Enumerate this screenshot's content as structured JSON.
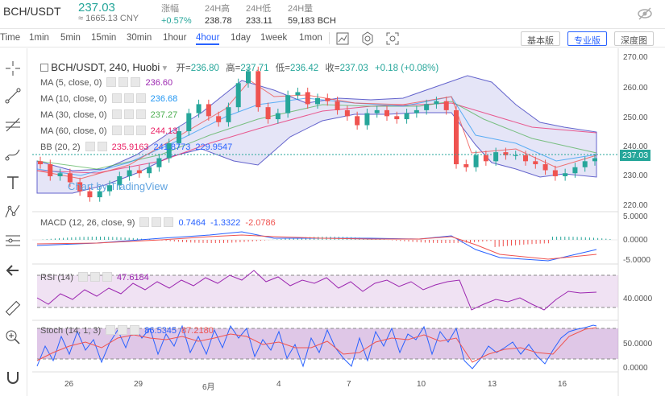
{
  "ticker": {
    "symbol": "BCH/USDT",
    "price": "237.03",
    "cny": "≈ 1665.13 CNY",
    "stats": [
      {
        "label": "涨幅",
        "value": "+0.57%",
        "up": true
      },
      {
        "label": "24H高",
        "value": "238.78",
        "up": false
      },
      {
        "label": "24H低",
        "value": "233.11",
        "up": false
      },
      {
        "label": "24H量",
        "value": "59,183 BCH",
        "up": false
      }
    ]
  },
  "toolbar": {
    "intervals": [
      "Time",
      "1min",
      "5min",
      "15min",
      "30min",
      "1hour",
      "4hour",
      "1day",
      "1week",
      "1mon"
    ],
    "active_interval": "4hour",
    "views": [
      {
        "label": "基本版",
        "active": false
      },
      {
        "label": "专业版",
        "active": true
      },
      {
        "label": "深度图",
        "active": false
      }
    ]
  },
  "legend": {
    "symbol_line": "BCH/USDT, 240, Huobi",
    "open_label": "开=",
    "open": "236.80",
    "high_label": "高=",
    "high": "237.71",
    "low_label": "低=",
    "low": "236.42",
    "close_label": "收=",
    "close": "237.03",
    "change": "+0.18 (+0.08%)"
  },
  "indicators": {
    "ma5": {
      "label": "MA (5, close, 0)",
      "value": "236.60",
      "color": "#9c27b0"
    },
    "ma10": {
      "label": "MA (10, close, 0)",
      "value": "236.68",
      "color": "#2196f3"
    },
    "ma30": {
      "label": "MA (30, close, 0)",
      "value": "237.27",
      "color": "#4caf50"
    },
    "ma60": {
      "label": "MA (60, close, 0)",
      "value": "244.13",
      "color": "#e91e63"
    },
    "bb": {
      "label": "BB (20, 2)",
      "v1": "235.9163",
      "v2": "241.8773",
      "v3": "229.9547"
    },
    "macd": {
      "label": "MACD (12, 26, close, 9)",
      "v1": "0.7464",
      "v2": "-1.3322",
      "v3": "-2.0786"
    },
    "rsi": {
      "label": "RSI (14)",
      "v1": "47.6184"
    },
    "stoch": {
      "label": "Stoch (14, 1, 3)",
      "v1": "86.5345",
      "v2": "87.2180"
    }
  },
  "watermark": "Chart by TradingView",
  "price_axis": [
    "270.00",
    "260.00",
    "250.00",
    "240.00",
    "230.00",
    "220.00"
  ],
  "current_price_tag": "237.03",
  "macd_axis": [
    "5.0000",
    "0.0000",
    "-5.0000"
  ],
  "rsi_axis": [
    "40.0000"
  ],
  "stoch_axis": [
    "50.0000",
    "0.0000"
  ],
  "time_axis": [
    "26",
    "29",
    "6月",
    "4",
    "7",
    "10",
    "13",
    "16"
  ],
  "colors": {
    "up": "#26a69a",
    "down": "#ef5350",
    "accent": "#2962ff"
  },
  "icons": [
    "crosshair-icon",
    "trendline-icon",
    "fib-icon",
    "brush-icon",
    "text-icon",
    "pattern-icon",
    "measure-icon",
    "back-arrow-icon",
    "ruler-icon",
    "zoom-icon",
    "magnet-icon"
  ],
  "chart_data": {
    "type": "candlestick",
    "title": "BCH/USDT, 240, Huobi",
    "ylim": [
      220,
      272
    ],
    "candles_approx_close": [
      235,
      231,
      232,
      229,
      226,
      224,
      226,
      228,
      231,
      233,
      232,
      234,
      237,
      242,
      246,
      252,
      255,
      251,
      249,
      254,
      262,
      266,
      254,
      250,
      252,
      258,
      259,
      255,
      257,
      256,
      253,
      251,
      248,
      252,
      253,
      251,
      250,
      252,
      253,
      255,
      256,
      253,
      235,
      234,
      238,
      236,
      239,
      238,
      238,
      236,
      235,
      233,
      231,
      232,
      234,
      236,
      237
    ]
  }
}
